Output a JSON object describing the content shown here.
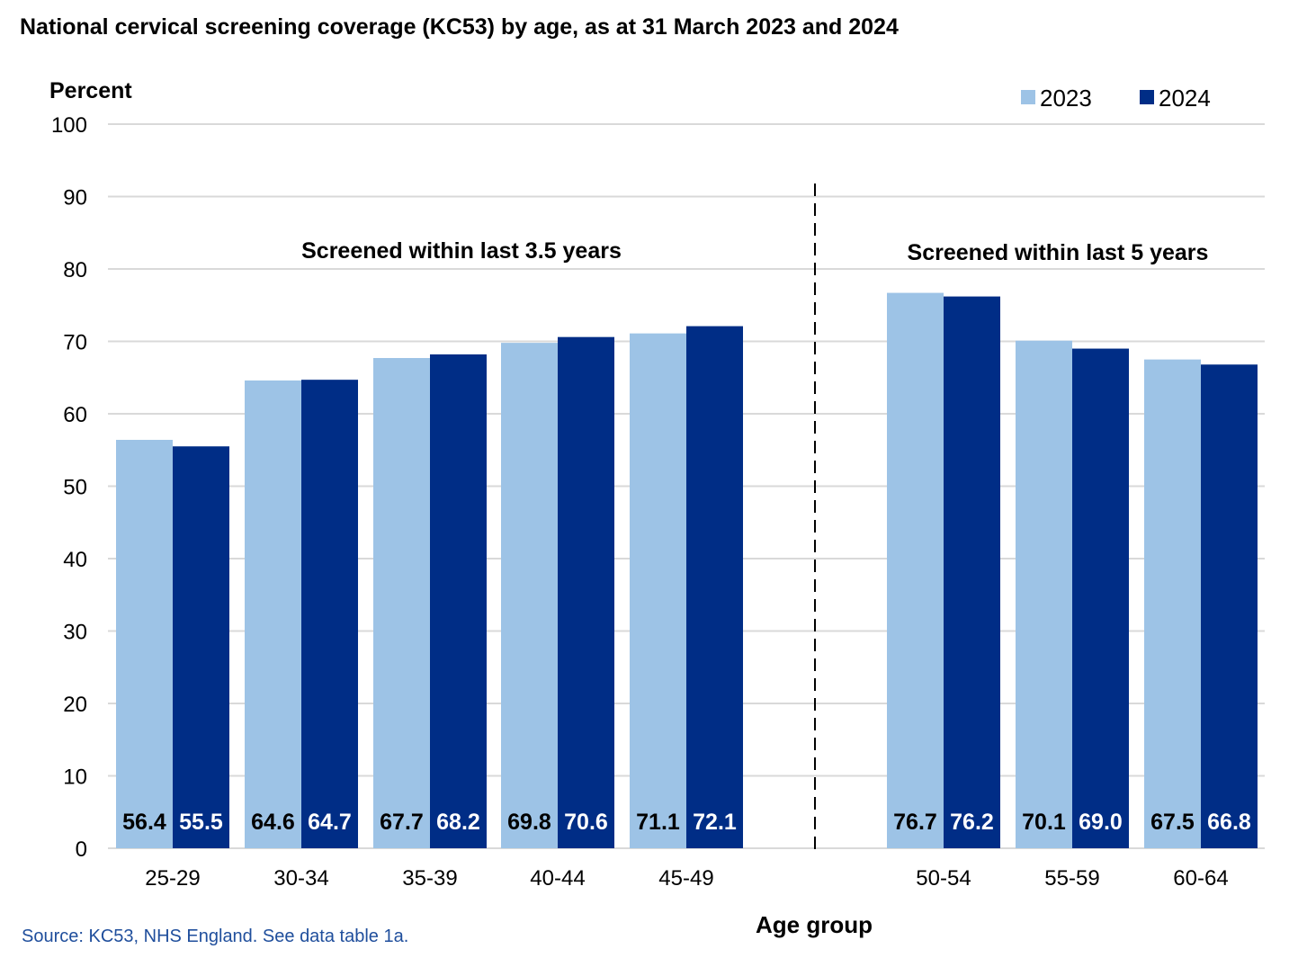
{
  "title": "National cervical screening coverage (KC53) by age, as at 31 March 2023 and 2024",
  "source": "Source: KC53, NHS England. See data table 1a.",
  "colors": {
    "2023": "#9dc3e6",
    "2024": "#002d86",
    "grid": "#d9d9d9",
    "source": "#1f4e9c"
  },
  "chart_data": {
    "type": "bar",
    "title": "National cervical screening coverage (KC53) by age, as at 31 March 2023 and 2024",
    "ylabel": "Percent",
    "xlabel": "Age group",
    "ylim": [
      0,
      100
    ],
    "yticks": [
      0,
      10,
      20,
      30,
      40,
      50,
      60,
      70,
      80,
      90,
      100
    ],
    "grid": true,
    "legend_position": "top-right",
    "categories": [
      "25-29",
      "30-34",
      "35-39",
      "40-44",
      "45-49",
      "50-54",
      "55-59",
      "60-64"
    ],
    "series": [
      {
        "name": "2023",
        "values": [
          56.4,
          64.6,
          67.7,
          69.8,
          71.1,
          76.7,
          70.1,
          67.5
        ]
      },
      {
        "name": "2024",
        "values": [
          55.5,
          64.7,
          68.2,
          70.6,
          72.1,
          76.2,
          69.0,
          66.8
        ]
      }
    ],
    "data_labels": [
      [
        "56.4",
        "64.6",
        "67.7",
        "69.8",
        "71.1",
        "76.7",
        "70.1",
        "67.5"
      ],
      [
        "55.5",
        "64.7",
        "68.2",
        "70.6",
        "72.1",
        "76.2",
        "69.0",
        "66.8"
      ]
    ],
    "annotations": {
      "left_group": "Screened within last 3.5 years",
      "right_group": "Screened within last 5 years"
    }
  }
}
